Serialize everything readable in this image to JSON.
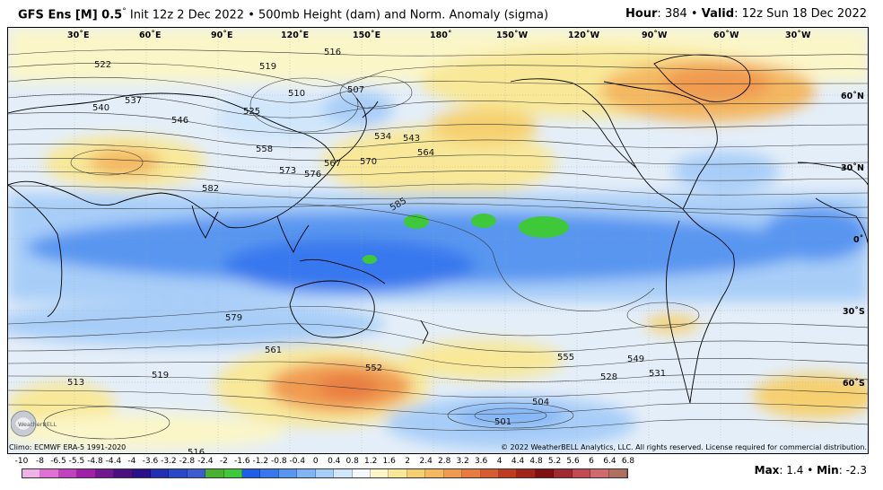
{
  "header": {
    "model_label": "GFS Ens [M] 0.5",
    "degree_symbol": "°",
    "init_text": "Init 12z 2 Dec 2022",
    "separator": "•",
    "product": "500mb Height (dam) and Norm. Anomaly (sigma)",
    "hour_label": "Hour",
    "hour_value": "384",
    "valid_label": "Valid",
    "valid_value": "12z Sun 18 Dec 2022"
  },
  "map": {
    "lon_labels": [
      "30˚E",
      "60˚E",
      "90˚E",
      "120˚E",
      "150˚E",
      "180˚",
      "150˚W",
      "120˚W",
      "90˚W",
      "60˚W",
      "30˚W"
    ],
    "lat_labels": [
      "60˚N",
      "30˚N",
      "0˚",
      "30˚S",
      "60˚S"
    ],
    "contour_labels": [
      "516",
      "522",
      "519",
      "510",
      "507",
      "537",
      "540",
      "546",
      "525",
      "534",
      "543",
      "564",
      "558",
      "570",
      "573",
      "576",
      "567",
      "582",
      "585",
      "501",
      "513",
      "504",
      "528",
      "552",
      "561",
      "579",
      "555",
      "549",
      "531",
      "519",
      "516"
    ]
  },
  "credits": {
    "climo": "Climo: ECMWF ERA-5 1991-2020",
    "copyright": "© 2022 WeatherBELL Analytics, LLC. All rights reserved. License required for commercial distribution.",
    "logo_text": "WeatherBELL"
  },
  "colorbar": {
    "ticks": [
      "-10",
      "-8",
      "-6.5",
      "-5.5",
      "-4.8",
      "-4.4",
      "-4",
      "-3.6",
      "-3.2",
      "-2.8",
      "-2.4",
      "-2",
      "-1.6",
      "-1.2",
      "-0.8",
      "-0.4",
      "0",
      "0.4",
      "0.8",
      "1.2",
      "1.6",
      "2",
      "2.4",
      "2.8",
      "3.2",
      "3.6",
      "4",
      "4.4",
      "4.8",
      "5.2",
      "5.6",
      "6",
      "6.4",
      "6.8"
    ],
    "colors": [
      "#f0b0e8",
      "#e070d8",
      "#c040c0",
      "#a020a8",
      "#701890",
      "#4a1080",
      "#2a108a",
      "#2030b0",
      "#2848c8",
      "#3c5cd0",
      "#4ab030",
      "#3ec83a",
      "#1e5ee8",
      "#3878ee",
      "#5896f0",
      "#80b4f4",
      "#a8cef8",
      "#d0e6fb",
      "#f4f8fc",
      "#fbf6c8",
      "#f8e898",
      "#f6d070",
      "#f4b860",
      "#f09a50",
      "#e87c40",
      "#d85c30",
      "#c03c20",
      "#a02418",
      "#801010",
      "#a02a30",
      "#c04a50",
      "#d06a6c",
      "#b07060"
    ]
  },
  "stats": {
    "max_label": "Max",
    "max_value": "1.4",
    "separator": "•",
    "min_label": "Min",
    "min_value": "-2.3"
  }
}
